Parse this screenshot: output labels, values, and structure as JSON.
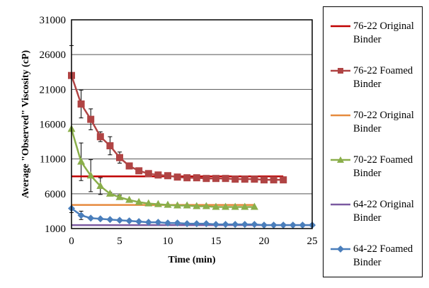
{
  "chart_data": {
    "type": "line",
    "title": "",
    "xlabel": "Time (min)",
    "ylabel": "Average \"Observed\" Viscosity (cP)",
    "xlim": [
      0,
      25
    ],
    "ylim": [
      1000,
      31000
    ],
    "x_ticks": [
      "0",
      "5",
      "10",
      "15",
      "20",
      "25"
    ],
    "x_tick_values": [
      0,
      5,
      10,
      15,
      20,
      25
    ],
    "y_ticks": [
      "1000",
      "6000",
      "11000",
      "16000",
      "21000",
      "26000",
      "31000"
    ],
    "y_tick_values": [
      1000,
      6000,
      11000,
      16000,
      21000,
      26000,
      31000
    ],
    "grid": "horizontal",
    "legend_position": "right",
    "series": [
      {
        "name": "76-22 Original Binder",
        "color": "#C00000",
        "marker": "none",
        "x": [
          0,
          22
        ],
        "values": [
          8500,
          8500
        ]
      },
      {
        "name": "76-22 Foamed Binder",
        "color": "#B04444",
        "marker": "square",
        "x": [
          0,
          1,
          2,
          3,
          4,
          5,
          6,
          7,
          8,
          9,
          10,
          11,
          12,
          13,
          14,
          15,
          16,
          17,
          18,
          19,
          20,
          21,
          22
        ],
        "values": [
          23000,
          18900,
          16700,
          14200,
          12900,
          11200,
          10000,
          9300,
          8900,
          8700,
          8600,
          8400,
          8300,
          8300,
          8200,
          8200,
          8200,
          8100,
          8100,
          8100,
          8000,
          8000,
          8000
        ],
        "error": [
          0,
          2000,
          1500,
          700,
          1300,
          800,
          0,
          0,
          0,
          0,
          0,
          0,
          0,
          0,
          0,
          0,
          0,
          0,
          0,
          0,
          0,
          0,
          0
        ]
      },
      {
        "name": "70-22 Original Binder",
        "color": "#E68A3E",
        "marker": "none",
        "x": [
          0,
          19
        ],
        "values": [
          4400,
          4400
        ]
      },
      {
        "name": "70-22 Foamed Binder",
        "color": "#8AAE4A",
        "marker": "triangle",
        "x": [
          0,
          1,
          2,
          3,
          4,
          5,
          6,
          7,
          8,
          9,
          10,
          11,
          12,
          13,
          14,
          15,
          16,
          17,
          18,
          19
        ],
        "values": [
          15300,
          10600,
          8600,
          7100,
          6000,
          5500,
          5100,
          4800,
          4600,
          4500,
          4400,
          4300,
          4300,
          4200,
          4200,
          4100,
          4100,
          4100,
          4100,
          4100
        ],
        "error": [
          12000,
          2700,
          2300,
          1200,
          200,
          300,
          0,
          0,
          0,
          0,
          0,
          0,
          0,
          0,
          0,
          0,
          0,
          0,
          0,
          0
        ]
      },
      {
        "name": "64-22 Original Binder",
        "color": "#7B5AA0",
        "marker": "none",
        "x": [
          0,
          25
        ],
        "values": [
          1500,
          1500
        ]
      },
      {
        "name": "64-22 Foamed Binder",
        "color": "#4A7EBB",
        "marker": "diamond",
        "x": [
          0,
          1,
          2,
          3,
          4,
          5,
          6,
          7,
          8,
          9,
          10,
          11,
          12,
          13,
          14,
          15,
          16,
          17,
          18,
          19,
          20,
          21,
          22,
          23,
          24,
          25
        ],
        "values": [
          3900,
          2900,
          2500,
          2400,
          2300,
          2200,
          2100,
          2000,
          1900,
          1900,
          1800,
          1800,
          1700,
          1700,
          1700,
          1600,
          1600,
          1600,
          1600,
          1600,
          1500,
          1500,
          1500,
          1500,
          1500,
          1500
        ],
        "error": [
          0,
          600,
          0,
          0,
          0,
          0,
          0,
          0,
          0,
          0,
          0,
          0,
          0,
          0,
          0,
          0,
          0,
          0,
          0,
          0,
          0,
          0,
          0,
          0,
          0,
          0
        ]
      }
    ]
  },
  "legend": {
    "items": [
      {
        "line1": "76-22 Original",
        "line2": "Binder"
      },
      {
        "line1": "76-22 Foamed",
        "line2": "Binder"
      },
      {
        "line1": "70-22 Original",
        "line2": "Binder"
      },
      {
        "line1": "70-22 Foamed",
        "line2": "Binder"
      },
      {
        "line1": "64-22 Original",
        "line2": "Binder"
      },
      {
        "line1": "64-22 Foamed",
        "line2": "Binder"
      }
    ]
  }
}
